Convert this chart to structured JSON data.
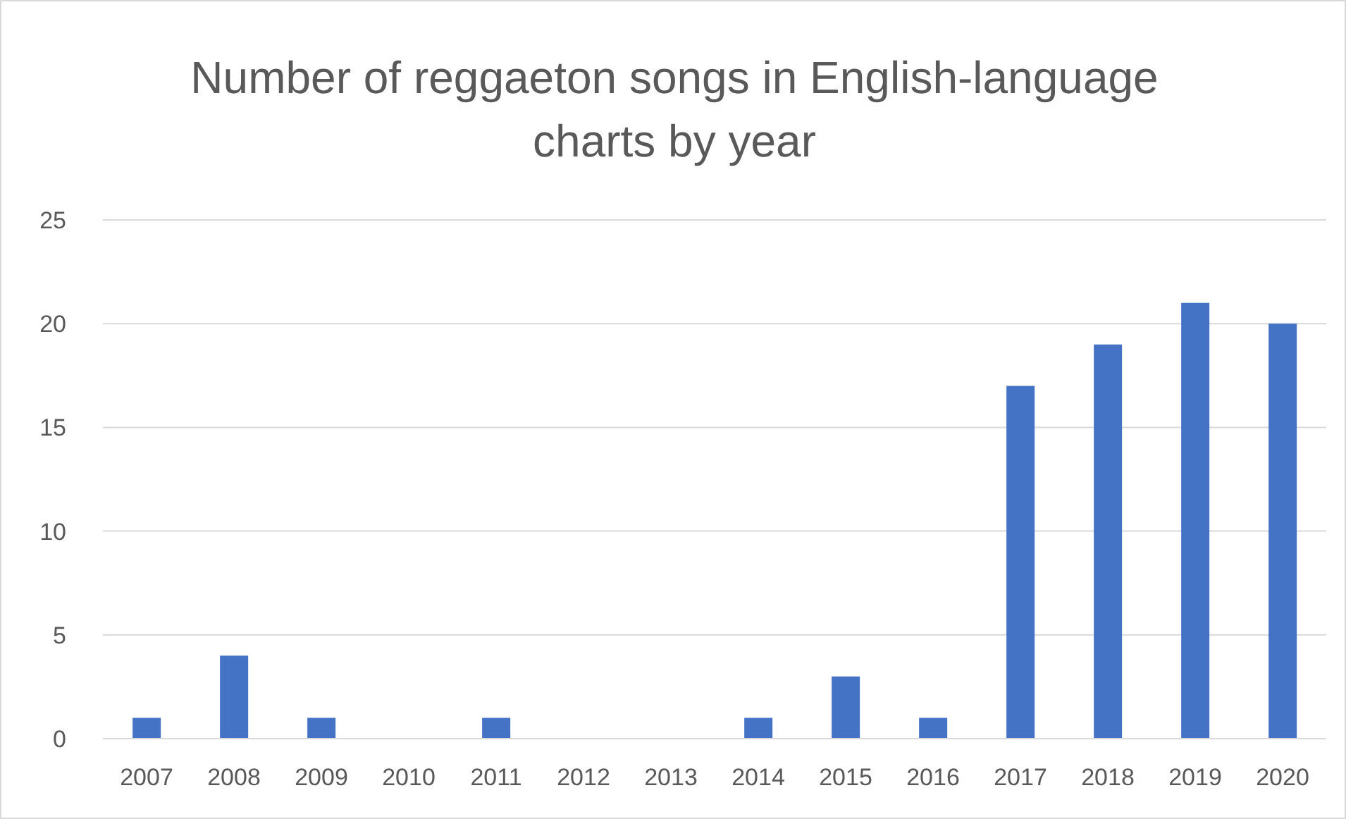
{
  "chart_data": {
    "type": "bar",
    "title": "Number of reggaeton songs in English-language charts by year",
    "categories": [
      "2007",
      "2008",
      "2009",
      "2010",
      "2011",
      "2012",
      "2013",
      "2014",
      "2015",
      "2016",
      "2017",
      "2018",
      "2019",
      "2020"
    ],
    "values": [
      1,
      4,
      1,
      0,
      1,
      0,
      0,
      1,
      3,
      1,
      17,
      19,
      21,
      20
    ],
    "color": "#4472c4",
    "ylim": [
      0,
      25
    ],
    "yticks": [
      0,
      5,
      10,
      15,
      20,
      25
    ],
    "grid": "y"
  }
}
